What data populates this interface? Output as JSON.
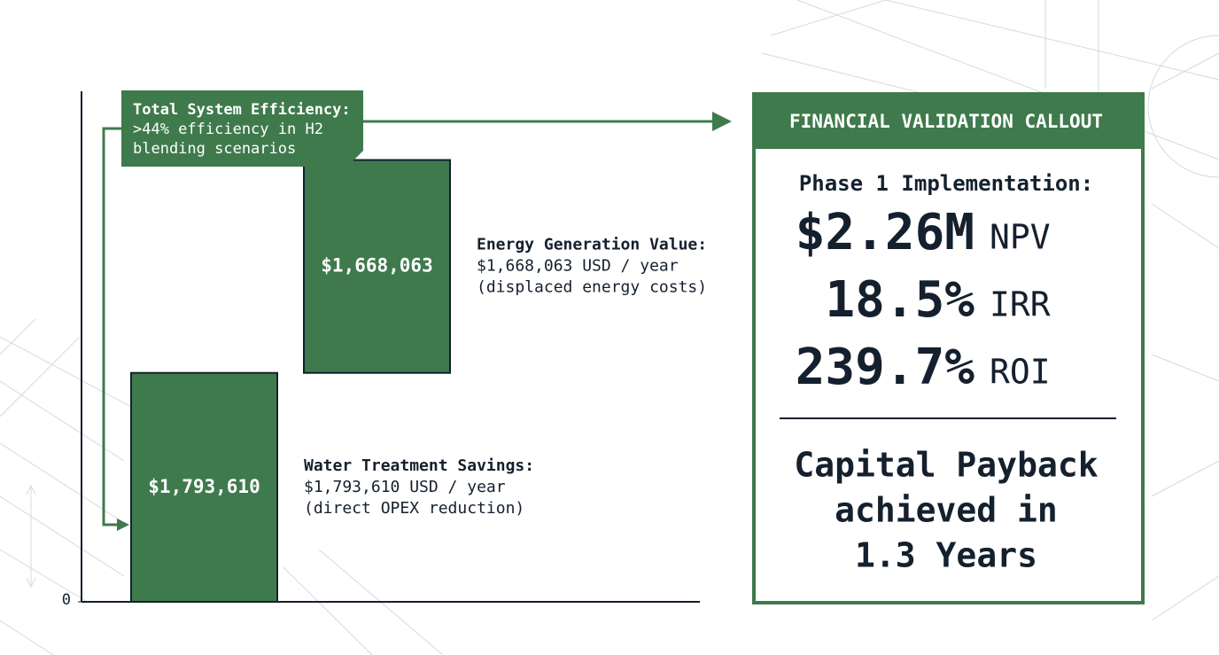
{
  "chart_data": {
    "type": "waterfall",
    "values": [
      1793610,
      1668063
    ],
    "value_labels": [
      "$1,793,610",
      "$1,668,063"
    ],
    "color": "#3f7a4c",
    "ylim": [
      0,
      4000000
    ],
    "yticks": [
      0
    ],
    "annotations": [
      {
        "title": "Water Treatment Savings:",
        "lines": [
          "$1,793,610 USD / year",
          "(direct OPEX reduction)"
        ]
      },
      {
        "title": "Energy Generation Value:",
        "lines": [
          "$1,668,063 USD / year",
          "(displaced energy costs)"
        ]
      }
    ],
    "summary": {
      "title": "Total System Efficiency:",
      "lines": [
        ">44% efficiency in H2",
        "blending scenarios"
      ]
    }
  },
  "callout": {
    "title": "FINANCIAL VALIDATION CALLOUT",
    "heading": "Phase 1 Implementation:",
    "metrics": [
      {
        "value": "$2.26M",
        "unit": "NPV"
      },
      {
        "value": "18.5%",
        "unit": "IRR"
      },
      {
        "value": "239.7%",
        "unit": "ROI"
      }
    ],
    "payback": [
      "Capital Payback",
      "achieved in",
      "1.3 Years"
    ]
  }
}
